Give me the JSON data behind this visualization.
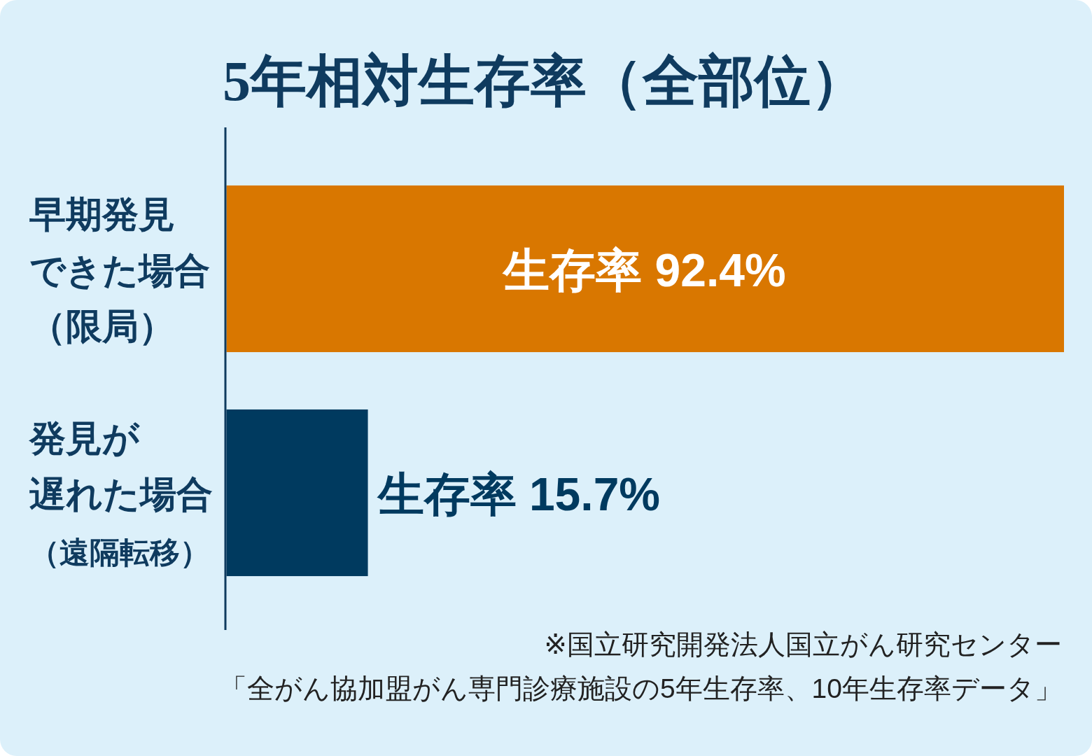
{
  "chart_data": {
    "type": "bar",
    "orientation": "horizontal",
    "title": "5年相対生存率（全部位）",
    "categories": [
      "早期発見できた場合（限局）",
      "発見が遅れた場合（遠隔転移）"
    ],
    "values": [
      92.4,
      15.7
    ],
    "colors": [
      "#d97700",
      "#003a5f"
    ],
    "value_labels": [
      "生存率 92.4%",
      "生存率 15.7%"
    ],
    "annotations": [
      "※国立研究開発法人国立がん研究センター",
      "「全がん協加盟がん専門診療施設の5年生存率、10年生存率データ」"
    ]
  }
}
